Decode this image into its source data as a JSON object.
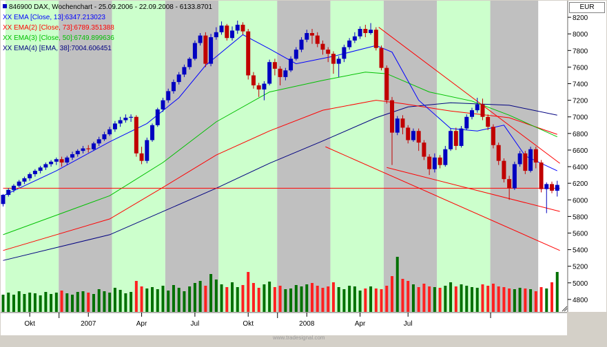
{
  "header": {
    "title": "846900  DAX, Wochenchart - 25.09.2006 - 22.09.2008 - 6133.8701",
    "currency": "EUR",
    "watermark": "www.tradesignal.com"
  },
  "legend": [
    {
      "marker": "XX",
      "text": "EMA [Close, 13]:6347.213023",
      "color": "#0000ff"
    },
    {
      "marker": "XX",
      "text": "EMA(2) [Close, 73]:6789.351388",
      "color": "#ff0000"
    },
    {
      "marker": "XX",
      "text": "EMA(3) [Close, 50]:6749.899636",
      "color": "#00c000"
    },
    {
      "marker": "XX",
      "text": "EMA(4) [EMA, 38]:7004.606451",
      "color": "#000080"
    }
  ],
  "colors": {
    "up": "#0000c0",
    "down": "#c00000",
    "green_band": "#ccffcc",
    "gray_band": "#c0c0c0",
    "vol_up": "#007000",
    "vol_down": "#ff2020",
    "ema13": "#0000ff",
    "ema73": "#ff0000",
    "ema50": "#00c000",
    "ema38": "#000080",
    "trend": "#ff0000"
  },
  "chart_data": {
    "type": "candlestick",
    "title": "846900  DAX, Wochenchart - 25.09.2006 - 22.09.2008 - 6133.8701",
    "y_ticks": [
      8200,
      8000,
      7800,
      7600,
      7400,
      7200,
      7000,
      6800,
      6600,
      6400,
      6200,
      6000,
      5800,
      5600,
      5400,
      5200,
      5000,
      4800
    ],
    "ylim": [
      4650,
      8400
    ],
    "x_labels": [
      "Okt",
      "2007",
      "Apr",
      "Jul",
      "Okt",
      "2008",
      "Apr",
      "Jul"
    ],
    "bars_count": 105,
    "horizontal_level": 6140,
    "candles": [
      [
        5950,
        6060,
        5920,
        6070
      ],
      [
        6060,
        6120,
        6040,
        6140
      ],
      [
        6120,
        6170,
        6090,
        6190
      ],
      [
        6170,
        6220,
        6150,
        6240
      ],
      [
        6220,
        6260,
        6190,
        6280
      ],
      [
        6260,
        6310,
        6230,
        6330
      ],
      [
        6310,
        6350,
        6280,
        6370
      ],
      [
        6350,
        6390,
        6320,
        6410
      ],
      [
        6390,
        6430,
        6360,
        6450
      ],
      [
        6430,
        6460,
        6400,
        6480
      ],
      [
        6460,
        6490,
        6420,
        6510
      ],
      [
        6490,
        6450,
        6400,
        6520
      ],
      [
        6450,
        6510,
        6420,
        6530
      ],
      [
        6510,
        6550,
        6480,
        6580
      ],
      [
        6550,
        6590,
        6520,
        6610
      ],
      [
        6590,
        6620,
        6560,
        6650
      ],
      [
        6620,
        6610,
        6570,
        6660
      ],
      [
        6610,
        6680,
        6590,
        6700
      ],
      [
        6680,
        6730,
        6650,
        6760
      ],
      [
        6730,
        6790,
        6710,
        6820
      ],
      [
        6790,
        6850,
        6770,
        6880
      ],
      [
        6850,
        6920,
        6820,
        6950
      ],
      [
        6920,
        6960,
        6880,
        7000
      ],
      [
        6960,
        6990,
        6930,
        7030
      ],
      [
        6990,
        7000,
        6940,
        7030
      ],
      [
        7000,
        6560,
        6520,
        7020
      ],
      [
        6560,
        6470,
        6430,
        6640
      ],
      [
        6470,
        6720,
        6440,
        6750
      ],
      [
        6720,
        6900,
        6700,
        6920
      ],
      [
        6900,
        7090,
        6880,
        7110
      ],
      [
        7090,
        7200,
        7060,
        7230
      ],
      [
        7200,
        7310,
        7170,
        7340
      ],
      [
        7310,
        7420,
        7280,
        7450
      ],
      [
        7420,
        7510,
        7390,
        7540
      ],
      [
        7510,
        7600,
        7480,
        7630
      ],
      [
        7600,
        7700,
        7570,
        7720
      ],
      [
        7700,
        7890,
        7680,
        7920
      ],
      [
        7890,
        7980,
        7860,
        8010
      ],
      [
        7980,
        7640,
        7600,
        8020
      ],
      [
        7640,
        7960,
        7610,
        8000
      ],
      [
        7960,
        8020,
        7930,
        8080
      ],
      [
        8020,
        8100,
        7990,
        8150
      ],
      [
        8100,
        7950,
        7920,
        8120
      ],
      [
        7950,
        8040,
        7920,
        8090
      ],
      [
        8040,
        8110,
        8000,
        8160
      ],
      [
        8110,
        8030,
        7990,
        8140
      ],
      [
        8030,
        7500,
        7450,
        8060
      ],
      [
        7500,
        7380,
        7340,
        7540
      ],
      [
        7380,
        7330,
        7240,
        7410
      ],
      [
        7330,
        7400,
        7200,
        7430
      ],
      [
        7400,
        7660,
        7380,
        7690
      ],
      [
        7660,
        7580,
        7500,
        7700
      ],
      [
        7580,
        7480,
        7380,
        7610
      ],
      [
        7480,
        7560,
        7440,
        7590
      ],
      [
        7560,
        7700,
        7540,
        7730
      ],
      [
        7700,
        7810,
        7680,
        7840
      ],
      [
        7810,
        7930,
        7780,
        7960
      ],
      [
        7930,
        8010,
        7900,
        8050
      ],
      [
        8010,
        7980,
        7880,
        8060
      ],
      [
        7980,
        7880,
        7840,
        8020
      ],
      [
        7880,
        7810,
        7750,
        7920
      ],
      [
        7810,
        7760,
        7660,
        7840
      ],
      [
        7760,
        7640,
        7520,
        7790
      ],
      [
        7640,
        7700,
        7480,
        7730
      ],
      [
        7700,
        7840,
        7660,
        7870
      ],
      [
        7840,
        7920,
        7810,
        7950
      ],
      [
        7920,
        7970,
        7890,
        8020
      ],
      [
        7970,
        8060,
        7940,
        8090
      ],
      [
        8060,
        8010,
        7960,
        8110
      ],
      [
        8010,
        8050,
        7990,
        8130
      ],
      [
        8050,
        7830,
        7800,
        8080
      ],
      [
        7830,
        7590,
        7560,
        7860
      ],
      [
        7590,
        7200,
        7160,
        7620
      ],
      [
        7200,
        6810,
        6420,
        7240
      ],
      [
        6810,
        6980,
        6780,
        7010
      ],
      [
        6980,
        6870,
        6790,
        7020
      ],
      [
        6870,
        6720,
        6680,
        6900
      ],
      [
        6720,
        6830,
        6700,
        6860
      ],
      [
        6830,
        6690,
        6590,
        6860
      ],
      [
        6690,
        6520,
        6480,
        6720
      ],
      [
        6520,
        6370,
        6300,
        6550
      ],
      [
        6370,
        6510,
        6330,
        6560
      ],
      [
        6510,
        6420,
        6380,
        6540
      ],
      [
        6420,
        6610,
        6400,
        6650
      ],
      [
        6610,
        6830,
        6590,
        6860
      ],
      [
        6830,
        6650,
        6600,
        6870
      ],
      [
        6650,
        6860,
        6630,
        6890
      ],
      [
        6860,
        7000,
        6840,
        7030
      ],
      [
        7000,
        7080,
        6970,
        7110
      ],
      [
        7080,
        7150,
        7050,
        7230
      ],
      [
        7150,
        7000,
        6960,
        7220
      ],
      [
        7000,
        6880,
        6840,
        7030
      ],
      [
        6880,
        6660,
        6620,
        6910
      ],
      [
        6660,
        6470,
        6420,
        6690
      ],
      [
        6470,
        6250,
        6210,
        6500
      ],
      [
        6250,
        6140,
        6000,
        6290
      ],
      [
        6140,
        6430,
        6120,
        6460
      ],
      [
        6430,
        6560,
        6400,
        6590
      ],
      [
        6560,
        6350,
        6310,
        6590
      ],
      [
        6350,
        6610,
        6330,
        6640
      ],
      [
        6610,
        6450,
        6380,
        6640
      ],
      [
        6450,
        6130,
        6090,
        6480
      ],
      [
        6130,
        6190,
        5840,
        6210
      ],
      [
        6190,
        6110,
        6080,
        6220
      ],
      [
        6110,
        6180,
        6040,
        6230
      ]
    ],
    "bands": [
      {
        "from": 1,
        "to": 10,
        "color": "green"
      },
      {
        "from": 11,
        "to": 20,
        "color": "gray"
      },
      {
        "from": 21,
        "to": 30,
        "color": "green"
      },
      {
        "from": 31,
        "to": 40,
        "color": "gray"
      },
      {
        "from": 41,
        "to": 51,
        "color": "green"
      },
      {
        "from": 52,
        "to": 61,
        "color": "gray"
      },
      {
        "from": 62,
        "to": 71,
        "color": "green"
      },
      {
        "from": 72,
        "to": 81,
        "color": "gray"
      },
      {
        "from": 82,
        "to": 91,
        "color": "green"
      },
      {
        "from": 92,
        "to": 100,
        "color": "gray"
      }
    ],
    "x_label_bars": [
      5,
      16,
      26,
      36,
      46,
      57,
      67,
      76
    ],
    "ema13": [
      [
        0,
        6050
      ],
      [
        10,
        6350
      ],
      [
        20,
        6700
      ],
      [
        27,
        6920
      ],
      [
        33,
        7230
      ],
      [
        38,
        7620
      ],
      [
        45,
        7990
      ],
      [
        50,
        7820
      ],
      [
        55,
        7640
      ],
      [
        62,
        7730
      ],
      [
        70,
        7860
      ],
      [
        73,
        7780
      ],
      [
        78,
        7200
      ],
      [
        84,
        6860
      ],
      [
        89,
        6830
      ],
      [
        94,
        6900
      ],
      [
        98,
        6530
      ],
      [
        104,
        6350
      ]
    ],
    "ema50": [
      [
        0,
        5580
      ],
      [
        20,
        6050
      ],
      [
        30,
        6450
      ],
      [
        40,
        6940
      ],
      [
        50,
        7300
      ],
      [
        60,
        7440
      ],
      [
        68,
        7540
      ],
      [
        72,
        7520
      ],
      [
        80,
        7300
      ],
      [
        88,
        7190
      ],
      [
        95,
        7020
      ],
      [
        104,
        6760
      ]
    ],
    "ema73": [
      [
        0,
        5390
      ],
      [
        20,
        5770
      ],
      [
        30,
        6150
      ],
      [
        40,
        6540
      ],
      [
        50,
        6830
      ],
      [
        60,
        7080
      ],
      [
        70,
        7200
      ],
      [
        75,
        7160
      ],
      [
        84,
        7070
      ],
      [
        95,
        6990
      ],
      [
        104,
        6790
      ]
    ],
    "ema38": [
      [
        0,
        5270
      ],
      [
        20,
        5580
      ],
      [
        30,
        5860
      ],
      [
        40,
        6140
      ],
      [
        50,
        6440
      ],
      [
        60,
        6710
      ],
      [
        70,
        6990
      ],
      [
        76,
        7120
      ],
      [
        84,
        7170
      ],
      [
        95,
        7140
      ],
      [
        104,
        7020
      ]
    ],
    "trendlines": [
      {
        "x1": 70.5,
        "y1": 8080,
        "x2": 104.5,
        "y2": 6440
      },
      {
        "x1": 60.5,
        "y1": 6640,
        "x2": 104.5,
        "y2": 5390
      },
      {
        "x1": 72,
        "y1": 6390,
        "x2": 104.5,
        "y2": 5860
      },
      {
        "x1": 0,
        "y1": 6140,
        "x2": 104.5,
        "y2": 6140
      }
    ],
    "volume": [
      25,
      28,
      25,
      30,
      26,
      28,
      27,
      24,
      29,
      26,
      28,
      31,
      27,
      25,
      29,
      30,
      28,
      26,
      33,
      30,
      28,
      35,
      32,
      27,
      29,
      45,
      37,
      34,
      36,
      33,
      38,
      31,
      39,
      35,
      30,
      37,
      42,
      45,
      38,
      55,
      47,
      40,
      36,
      43,
      36,
      39,
      58,
      42,
      35,
      40,
      44,
      36,
      38,
      33,
      34,
      39,
      37,
      40,
      42,
      38,
      35,
      37,
      43,
      36,
      33,
      38,
      37,
      31,
      34,
      37,
      34,
      33,
      38,
      52,
      80,
      48,
      45,
      40,
      36,
      41,
      37,
      36,
      35,
      38,
      43,
      37,
      40,
      38,
      36,
      35,
      40,
      38,
      41,
      37,
      36,
      34,
      33,
      35,
      34,
      33,
      30,
      36,
      34,
      43,
      58
    ]
  }
}
